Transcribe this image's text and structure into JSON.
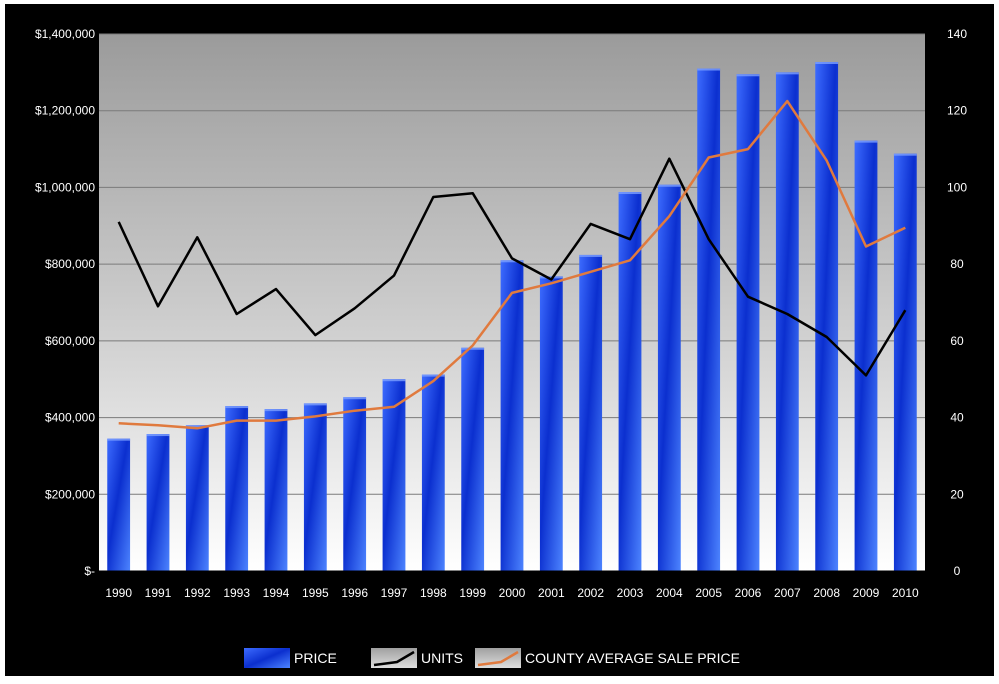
{
  "chart_data": {
    "type": "bar",
    "title": "",
    "xlabel": "",
    "ylabel": "",
    "y2label": "",
    "categories": [
      "1990",
      "1991",
      "1992",
      "1993",
      "1994",
      "1995",
      "1996",
      "1997",
      "1998",
      "1999",
      "2000",
      "2001",
      "2002",
      "2003",
      "2004",
      "2005",
      "2006",
      "2007",
      "2008",
      "2009",
      "2010"
    ],
    "ylim": [
      0,
      1400000
    ],
    "y2lim": [
      0,
      140
    ],
    "y_ticks": [
      {
        "value": 0,
        "label": "$-"
      },
      {
        "value": 200000,
        "label": "$200,000"
      },
      {
        "value": 400000,
        "label": "$400,000"
      },
      {
        "value": 600000,
        "label": "$600,000"
      },
      {
        "value": 800000,
        "label": "$800,000"
      },
      {
        "value": 1000000,
        "label": "$1,000,000"
      },
      {
        "value": 1200000,
        "label": "$1,200,000"
      },
      {
        "value": 1400000,
        "label": "$1,400,000"
      }
    ],
    "y2_ticks": [
      {
        "value": 0,
        "label": "0"
      },
      {
        "value": 20,
        "label": "20"
      },
      {
        "value": 40,
        "label": "40"
      },
      {
        "value": 60,
        "label": "60"
      },
      {
        "value": 80,
        "label": "80"
      },
      {
        "value": 100,
        "label": "100"
      },
      {
        "value": 120,
        "label": "120"
      },
      {
        "value": 140,
        "label": "140"
      }
    ],
    "grid": true,
    "legend_position": "bottom",
    "series": [
      {
        "name": "PRICE",
        "kind": "bar",
        "axis": "left",
        "color": "#2a52e8",
        "values": [
          345000,
          357000,
          380000,
          430000,
          422000,
          437000,
          453000,
          500000,
          512000,
          582000,
          810000,
          768000,
          824000,
          988000,
          1007000,
          1310000,
          1295000,
          1300000,
          1327000,
          1122000,
          1088000
        ]
      },
      {
        "name": "UNITS",
        "kind": "line",
        "axis": "right",
        "color": "#000000",
        "values": [
          91,
          69,
          87,
          67,
          73.5,
          61.5,
          68.5,
          77,
          97.5,
          98.5,
          81.5,
          76,
          90.5,
          86.5,
          107.5,
          86.5,
          71.5,
          67,
          61,
          51,
          68
        ]
      },
      {
        "name": "COUNTY AVERAGE SALE PRICE",
        "kind": "line",
        "axis": "left",
        "color": "#e07a3e",
        "values": [
          385000,
          380000,
          372000,
          392000,
          392000,
          403000,
          418000,
          428000,
          495000,
          588000,
          725000,
          750000,
          780000,
          810000,
          925000,
          1078000,
          1100000,
          1225000,
          1070000,
          846000,
          895000
        ]
      }
    ]
  }
}
